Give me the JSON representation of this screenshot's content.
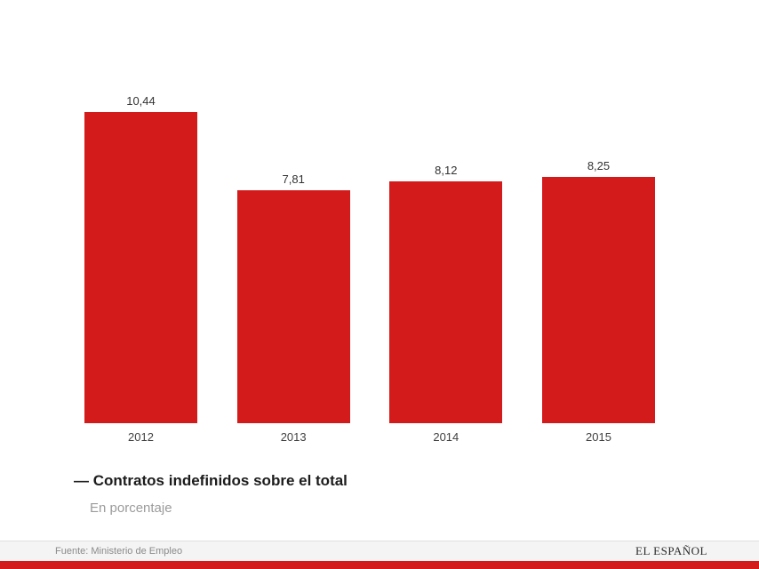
{
  "chart_data": {
    "type": "bar",
    "categories": [
      "2012",
      "2013",
      "2014",
      "2015"
    ],
    "values": [
      10.44,
      7.81,
      8.12,
      8.25
    ],
    "value_labels": [
      "10,44",
      "7,81",
      "8,12",
      "8,25"
    ],
    "title": "— Contratos indefinidos sobre el total",
    "subtitle": "En porcentaje",
    "xlabel": "",
    "ylabel": "",
    "ylim": [
      0,
      14.2
    ],
    "grid": false,
    "legend_position": "none",
    "bar_color": "#d31b1b"
  },
  "footer": {
    "source": "Fuente: Ministerio de Empleo",
    "brand": "EL ESPAÑOL",
    "accent_color": "#d31b1b"
  }
}
